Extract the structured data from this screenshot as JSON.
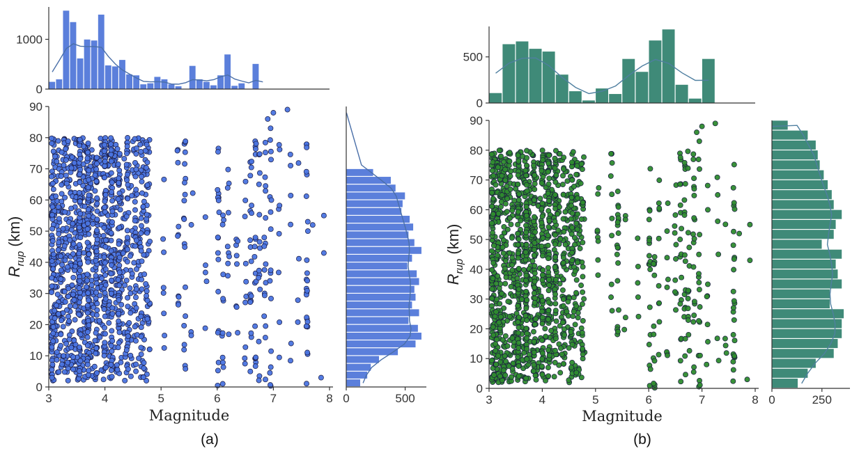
{
  "colors": {
    "panel_a_points": "#4a74e0",
    "panel_a_hist": "#5b7fdb",
    "panel_a_kde": "#4a6fa8",
    "panel_b_points": "#2e8b2e",
    "panel_b_hist": "#3f8a78",
    "panel_b_kde": "#4f7fa0"
  },
  "chart_data": [
    {
      "type": "scatter",
      "panel": "(a)",
      "caption": "(a)",
      "xlabel": "Magnitude",
      "ylabel_main": "R",
      "ylabel_sub": "rup",
      "ylabel_unit": " (km)",
      "xlim": [
        3,
        8
      ],
      "ylim": [
        0,
        90
      ],
      "x_ticks": [
        "3",
        "4",
        "5",
        "6",
        "7",
        "8"
      ],
      "y_ticks": [
        "0",
        "10",
        "20",
        "30",
        "40",
        "50",
        "60",
        "70",
        "80",
        "90"
      ],
      "point_distribution": "dense vertical bands at discrete magnitudes, Rrup mostly 0-80 km",
      "top_hist": {
        "bin_start": 3.0,
        "bin_width": 0.125,
        "counts": [
          150,
          200,
          1580,
          1350,
          620,
          1000,
          980,
          1500,
          480,
          460,
          590,
          300,
          280,
          100,
          120,
          250,
          200,
          100,
          60,
          0,
          470,
          200,
          150,
          80,
          280,
          700,
          70,
          120,
          0,
          510,
          0
        ],
        "yticks": [
          "0",
          "1000"
        ],
        "ylim": [
          0,
          1650
        ]
      },
      "right_hist": {
        "bin_start": 0,
        "bin_width": 2.5,
        "counts": [
          120,
          180,
          210,
          280,
          440,
          590,
          640,
          610,
          530,
          620,
          560,
          590,
          580,
          620,
          600,
          520,
          560,
          640,
          580,
          530,
          570,
          540,
          470,
          480,
          500,
          420,
          380,
          230,
          0
        ],
        "xticks": [
          "0",
          "500"
        ],
        "xlim": [
          0,
          680
        ]
      }
    },
    {
      "type": "scatter",
      "panel": "(b)",
      "caption": "(b)",
      "xlabel": "Magnitude",
      "ylabel_main": "R",
      "ylabel_sub": "rup",
      "ylabel_unit": " (km)",
      "xlim": [
        3,
        8
      ],
      "ylim": [
        0,
        90
      ],
      "x_ticks": [
        "3",
        "4",
        "5",
        "6",
        "7",
        "8"
      ],
      "y_ticks": [
        "0",
        "10",
        "20",
        "30",
        "40",
        "50",
        "60",
        "70",
        "80",
        "90"
      ],
      "point_distribution": "dense vertical bands at discrete magnitudes, Rrup mostly 0-80 km",
      "top_hist": {
        "bin_start": 3.0,
        "bin_width": 0.25,
        "counts": [
          110,
          640,
          670,
          590,
          560,
          310,
          130,
          30,
          160,
          100,
          480,
          340,
          680,
          800,
          200,
          50,
          480
        ],
        "yticks": [
          "0",
          "500"
        ],
        "ylim": [
          0,
          830
        ]
      },
      "right_hist": {
        "bin_start": 0,
        "bin_width": 3.333,
        "counts": [
          130,
          180,
          220,
          310,
          330,
          350,
          350,
          360,
          290,
          290,
          350,
          330,
          320,
          350,
          250,
          310,
          320,
          350,
          310,
          300,
          280,
          260,
          240,
          230,
          220,
          180,
          80
        ],
        "xticks": [
          "0",
          "250"
        ],
        "xlim": [
          0,
          390
        ]
      }
    }
  ]
}
